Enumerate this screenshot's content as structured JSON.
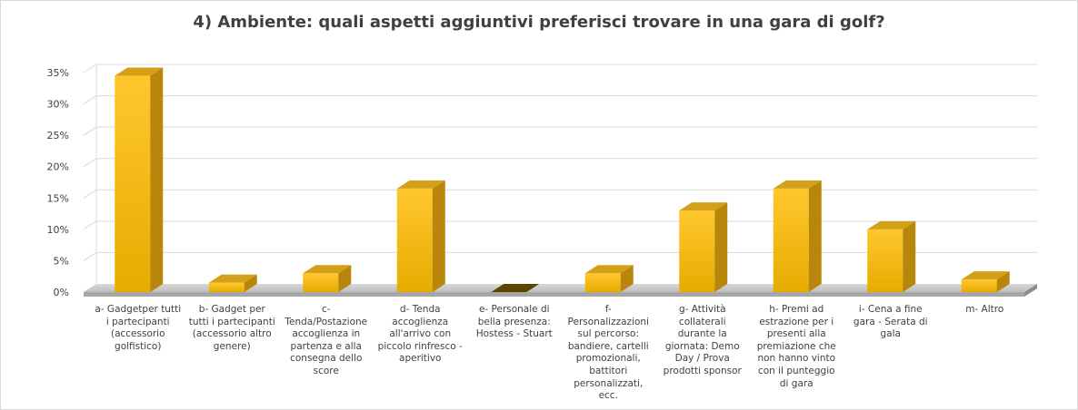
{
  "chart_data": {
    "type": "bar",
    "title": "4) Ambiente: quali aspetti aggiuntivi preferisci trovare in una gara di golf?",
    "ylim": [
      0,
      35
    ],
    "yticks": [
      "0%",
      "5%",
      "10%",
      "15%",
      "20%",
      "25%",
      "30%",
      "35%"
    ],
    "grid": true,
    "categories": [
      "a- Gadgetper tutti i partecipanti (accessorio golfistico)",
      "b- Gadget per tutti i partecipanti (accessorio altro genere)",
      "c- Tenda/Postazione accoglienza in partenza e alla consegna dello score",
      "d- Tenda accoglienza all'arrivo con piccolo rinfresco - aperitivo",
      "e- Personale di bella presenza: Hostess - Stuart",
      "f- Personalizzazioni sul percorso: bandiere, cartelli promozionali, battitori personalizzati, ecc.",
      "g- Attività collaterali durante la giornata: Demo Day / Prova prodotti sponsor",
      "h- Premi ad estrazione per i presenti alla premiazione che non hanno vinto con il punteggio di gara",
      "i- Cena a fine gara - Serata di gala",
      "m- Altro"
    ],
    "values": [
      34.5,
      1.5,
      3,
      16.5,
      0,
      3,
      13,
      16.5,
      10,
      2
    ],
    "colors": {
      "bar_front": "#ffc000",
      "bar_side": "#b8860b",
      "bar_top": "#d4a017",
      "floor": "#cfcfcf",
      "grid": "#d9d9d9",
      "text": "#404040"
    }
  }
}
